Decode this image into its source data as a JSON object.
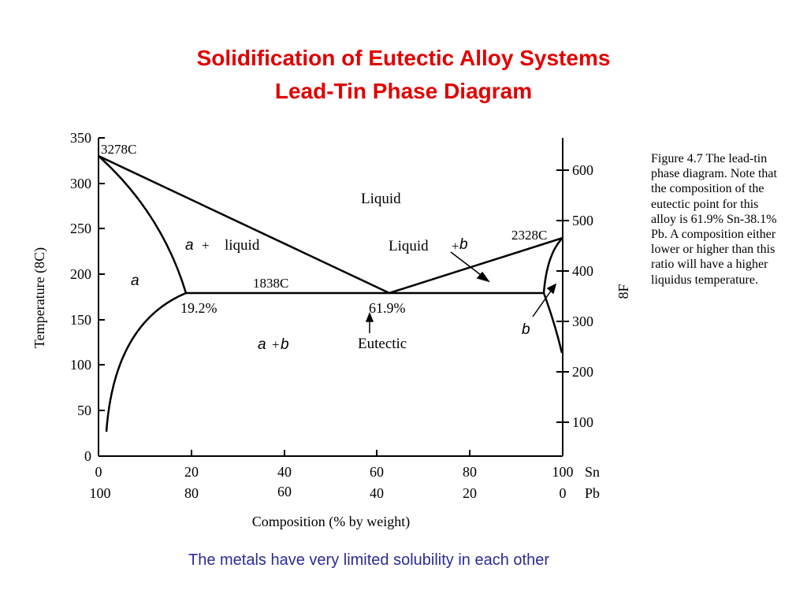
{
  "slide": {
    "title_line1": "Solidification of Eutectic Alloy Systems",
    "title_line2": "Lead-Tin Phase Diagram",
    "footer": "The metals have very limited solubility in each other"
  },
  "figure": {
    "caption": "Figure 4.7  The lead-tin phase diagram.  Note that the composition of the eutectic point for this alloy is 61.9% Sn-38.1% Pb.  A composition either lower or higher than this ratio will have a higher liquidus temperature.",
    "ylabel_left": "Temperature   (8C)",
    "ylabel_right": "8F",
    "xlabel": "Composition   (%   by   weight)",
    "y_ticks_c": [
      "350",
      "300",
      "250",
      "200",
      "150",
      "100",
      "50",
      "0"
    ],
    "y_ticks_f": [
      "600",
      "500",
      "400",
      "300",
      "200",
      "100"
    ],
    "x_ticks_sn": [
      "0",
      "20",
      "40",
      "60",
      "80",
      "100"
    ],
    "x_ticks_pb": [
      "100",
      "80",
      "60",
      "40",
      "20",
      "0"
    ],
    "x_axis_sn": "Sn",
    "x_axis_pb": "Pb",
    "labels": {
      "pb_melt": "3278C",
      "sn_melt": "2328C",
      "eutectic_temp": "1838C",
      "liquid": "Liquid",
      "alpha_liquid_a": "a",
      "alpha_liquid_plus": "+",
      "alpha_liquid_word": "liquid",
      "liquid_beta_word": "Liquid",
      "liquid_beta_plus": "+",
      "liquid_beta_b": "b",
      "alpha": "a",
      "beta": "b",
      "alpha_beta_a": "a",
      "alpha_beta_plus": "+",
      "alpha_beta_b": "b",
      "pct_left": "19.2%",
      "pct_eutectic": "61.9%",
      "eutectic": "Eutectic"
    }
  },
  "colors": {
    "title": "#e00000",
    "footer": "#2b2b9a",
    "lines": "#000000"
  }
}
